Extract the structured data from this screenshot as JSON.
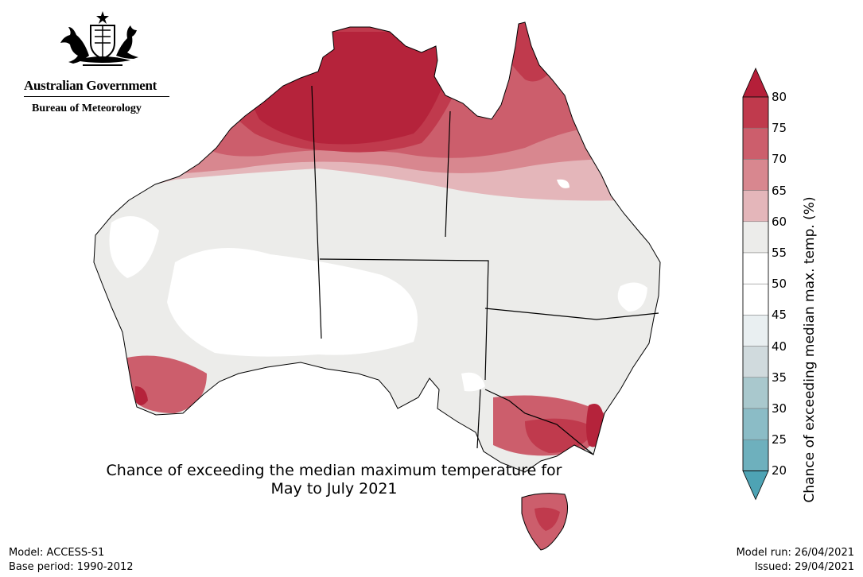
{
  "branding": {
    "government": "Australian Government",
    "bureau": "Bureau of Meteorology",
    "crest_icon": "coat-of-arms-icon"
  },
  "map": {
    "title_line1": "Chance of exceeding the median maximum temperature for",
    "title_line2": "May to July 2021",
    "region": "Australia",
    "colors": {
      "land_high": "#b5233b",
      "state_borders": "#000000",
      "coastline": "#000000"
    }
  },
  "legend": {
    "label": "Chance of exceeding median max. temp. (%)",
    "ticks": [
      "80",
      "75",
      "70",
      "65",
      "60",
      "55",
      "50",
      "45",
      "40",
      "35",
      "30",
      "25",
      "20"
    ],
    "bins": [
      {
        "range": "75-80",
        "color": "#c03a4d"
      },
      {
        "range": "70-75",
        "color": "#cc5e6c"
      },
      {
        "range": "65-70",
        "color": "#d8878f"
      },
      {
        "range": "60-65",
        "color": "#e4b6ba"
      },
      {
        "range": "55-60",
        "color": "#ececea"
      },
      {
        "range": "50-55",
        "color": "#ffffff"
      },
      {
        "range": "45-50",
        "color": "#ffffff"
      },
      {
        "range": "40-45",
        "color": "#e9eff1"
      },
      {
        "range": "35-40",
        "color": "#d0dadd"
      },
      {
        "range": "30-35",
        "color": "#a9c8cd"
      },
      {
        "range": "25-30",
        "color": "#8bbcc6"
      },
      {
        "range": "20-25",
        "color": "#6eb0bd"
      }
    ],
    "upper_arrow_color": "#b51f39",
    "lower_arrow_color": "#4ea3b4"
  },
  "footer": {
    "model": "Model: ACCESS-S1",
    "base_period": "Base period: 1990-2012",
    "model_run": "Model run: 26/04/2021",
    "issued": "Issued: 29/04/2021"
  }
}
